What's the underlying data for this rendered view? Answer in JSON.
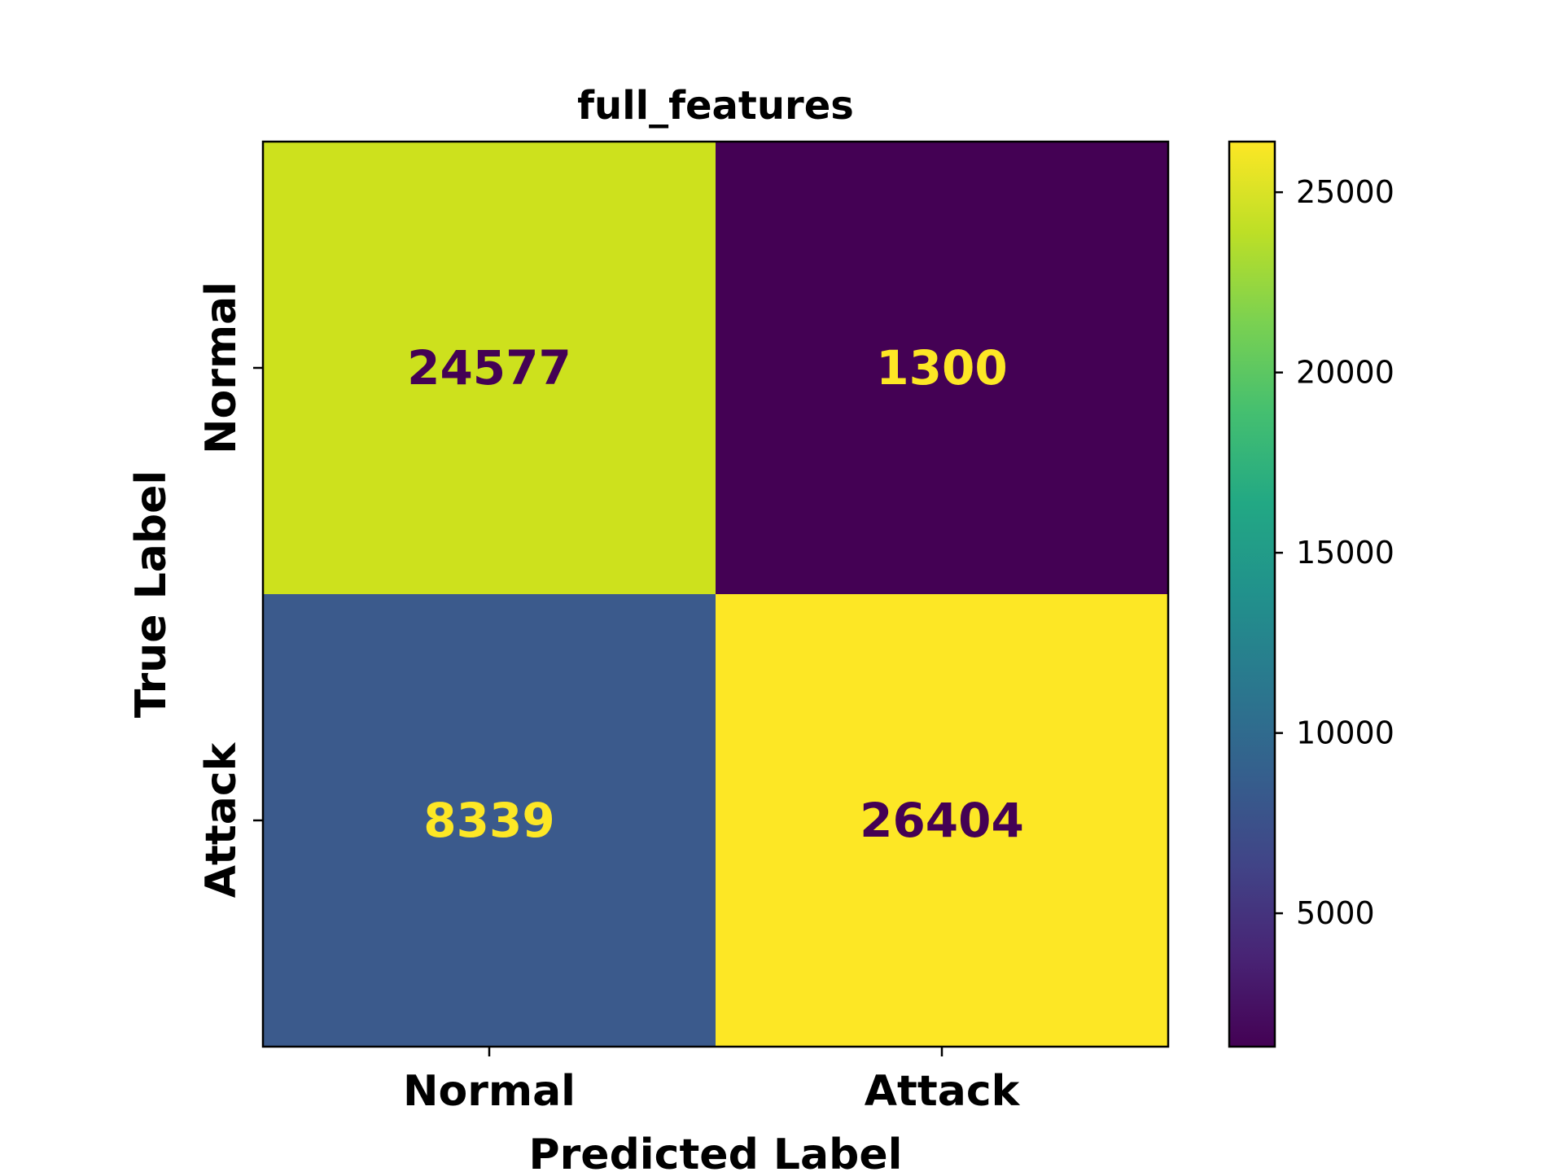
{
  "chart_data": {
    "type": "heatmap",
    "title": "full_features",
    "xlabel": "Predicted Label",
    "ylabel": "True Label",
    "x_categories": [
      "Normal",
      "Attack"
    ],
    "y_categories": [
      "Normal",
      "Attack"
    ],
    "matrix": [
      [
        24577,
        1300
      ],
      [
        8339,
        26404
      ]
    ],
    "colormap": "viridis",
    "colorbar": {
      "min": 1300,
      "max": 26404,
      "ticks": [
        5000,
        10000,
        15000,
        20000,
        25000
      ],
      "tick_labels": [
        "5000",
        "10000",
        "15000",
        "20000",
        "25000"
      ]
    },
    "cell_colors": [
      [
        "#cde11d",
        "#440154"
      ],
      [
        "#3b5a8c",
        "#fde725"
      ]
    ],
    "cell_text_colors": [
      [
        "#440154",
        "#fde725"
      ],
      [
        "#fde725",
        "#440154"
      ]
    ]
  }
}
